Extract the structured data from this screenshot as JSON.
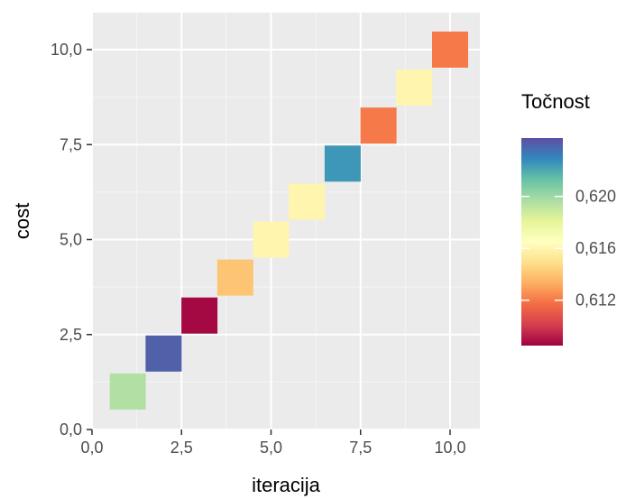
{
  "chart_data": {
    "type": "heatmap",
    "xlabel": "iteracija",
    "ylabel": "cost",
    "xlim": [
      0,
      10.5
    ],
    "ylim": [
      0,
      10.5
    ],
    "x_ticks": [
      "0,0",
      "2,5",
      "5,0",
      "7,5",
      "10,0"
    ],
    "y_ticks": [
      "0,0",
      "2,5",
      "5,0",
      "7,5",
      "10,0"
    ],
    "grid": true,
    "legend": {
      "title": "Točnost",
      "placement": "right",
      "labels": [
        "0,620",
        "0,616",
        "0,612"
      ],
      "label_values": [
        0.62,
        0.616,
        0.612
      ],
      "range": [
        0.6085,
        0.6245
      ],
      "palette": "Spectral"
    },
    "points": [
      {
        "x": 1,
        "y": 1,
        "value": 0.6195
      },
      {
        "x": 2,
        "y": 2,
        "value": 0.624
      },
      {
        "x": 3,
        "y": 3,
        "value": 0.6087
      },
      {
        "x": 4,
        "y": 4,
        "value": 0.614
      },
      {
        "x": 5,
        "y": 5,
        "value": 0.616
      },
      {
        "x": 6,
        "y": 6,
        "value": 0.616
      },
      {
        "x": 7,
        "y": 7,
        "value": 0.6225
      },
      {
        "x": 8,
        "y": 8,
        "value": 0.612
      },
      {
        "x": 9,
        "y": 9,
        "value": 0.616
      },
      {
        "x": 10,
        "y": 10,
        "value": 0.612
      }
    ]
  }
}
